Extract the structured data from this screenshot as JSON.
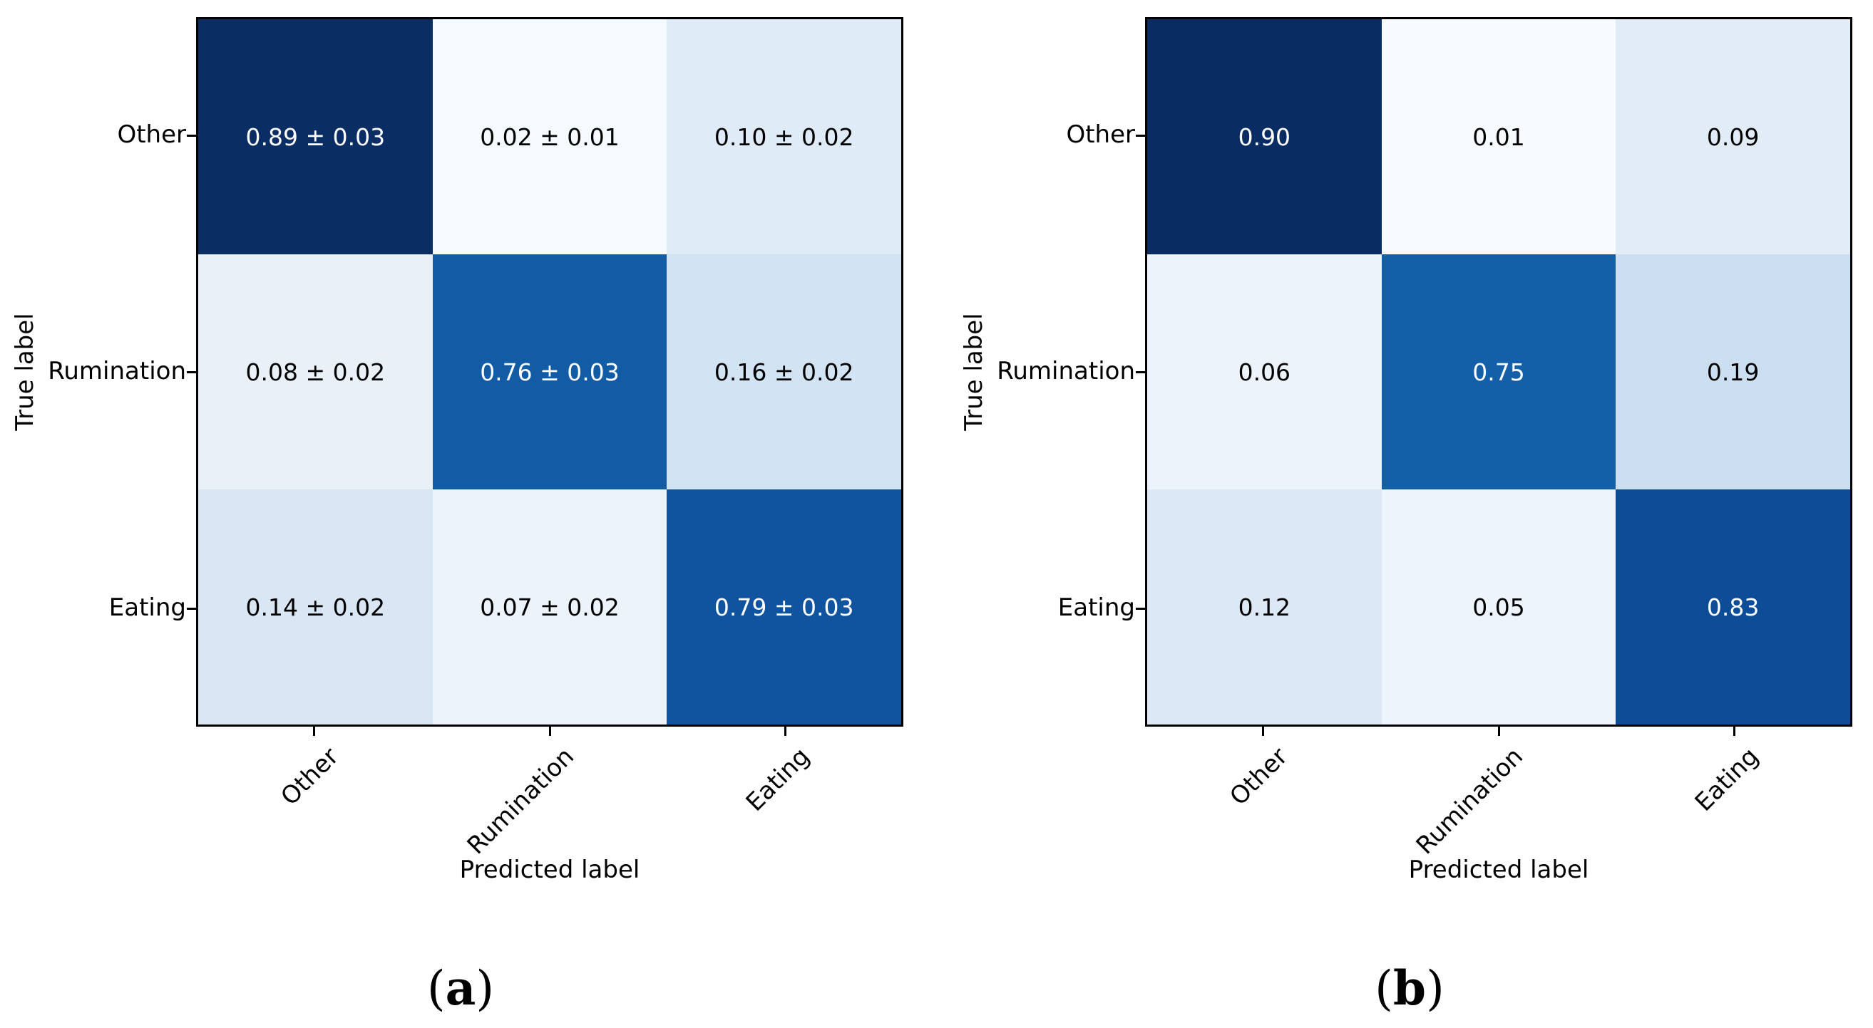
{
  "figure": {
    "background": "#ffffff",
    "panels": [
      {
        "caption": {
          "open": "(",
          "letter": "a",
          "close": ")"
        },
        "xlabel": "Predicted label",
        "ylabel": "True label",
        "row_labels": [
          "Other",
          "Rumination",
          "Eating"
        ],
        "col_labels": [
          "Other",
          "Rumination",
          "Eating"
        ],
        "cell_labels": [
          [
            "0.89 ± 0.03",
            "0.02 ± 0.01",
            "0.10 ± 0.02"
          ],
          [
            "0.08 ± 0.02",
            "0.76 ± 0.03",
            "0.16 ± 0.02"
          ],
          [
            "0.14 ± 0.02",
            "0.07 ± 0.02",
            "0.79 ± 0.03"
          ]
        ],
        "cell_colors": [
          [
            "#0a2e63",
            "#f5fafe",
            "#dfebf7"
          ],
          [
            "#e9f0f8",
            "#125ca6",
            "#d2e3f3"
          ],
          [
            "#d9e7f5",
            "#ecf3fa",
            "#10539e"
          ]
        ],
        "cell_text_colors": [
          [
            "#ffffff",
            "#000000",
            "#000000"
          ],
          [
            "#000000",
            "#ffffff",
            "#000000"
          ],
          [
            "#000000",
            "#000000",
            "#ffffff"
          ]
        ]
      },
      {
        "caption": {
          "open": "(",
          "letter": "b",
          "close": ")"
        },
        "xlabel": "Predicted label",
        "ylabel": "True label",
        "row_labels": [
          "Other",
          "Rumination",
          "Eating"
        ],
        "col_labels": [
          "Other",
          "Rumination",
          "Eating"
        ],
        "cell_labels": [
          [
            "0.90",
            "0.01",
            "0.09"
          ],
          [
            "0.06",
            "0.75",
            "0.19"
          ],
          [
            "0.12",
            "0.05",
            "0.83"
          ]
        ],
        "cell_colors": [
          [
            "#092d62",
            "#f7fbff",
            "#e1ecf7"
          ],
          [
            "#ecf3fb",
            "#135fa8",
            "#cbdff0"
          ],
          [
            "#dce8f5",
            "#eef4fc",
            "#0d4c96"
          ]
        ],
        "cell_text_colors": [
          [
            "#ffffff",
            "#000000",
            "#000000"
          ],
          [
            "#000000",
            "#ffffff",
            "#000000"
          ],
          [
            "#000000",
            "#000000",
            "#ffffff"
          ]
        ]
      }
    ]
  },
  "chart_data": [
    {
      "type": "heatmap",
      "caption": "(a)",
      "xlabel": "Predicted label",
      "ylabel": "True label",
      "x_categories": [
        "Other",
        "Rumination",
        "Eating"
      ],
      "y_categories": [
        "Other",
        "Rumination",
        "Eating"
      ],
      "values": [
        [
          0.89,
          0.02,
          0.1
        ],
        [
          0.08,
          0.76,
          0.16
        ],
        [
          0.14,
          0.07,
          0.79
        ]
      ],
      "errors": [
        [
          0.03,
          0.01,
          0.02
        ],
        [
          0.02,
          0.03,
          0.02
        ],
        [
          0.02,
          0.02,
          0.03
        ]
      ],
      "colormap": "Blues",
      "legend": "none",
      "grid": false
    },
    {
      "type": "heatmap",
      "caption": "(b)",
      "xlabel": "Predicted label",
      "ylabel": "True label",
      "x_categories": [
        "Other",
        "Rumination",
        "Eating"
      ],
      "y_categories": [
        "Other",
        "Rumination",
        "Eating"
      ],
      "values": [
        [
          0.9,
          0.01,
          0.09
        ],
        [
          0.06,
          0.75,
          0.19
        ],
        [
          0.12,
          0.05,
          0.83
        ]
      ],
      "errors": null,
      "colormap": "Blues",
      "legend": "none",
      "grid": false
    }
  ]
}
